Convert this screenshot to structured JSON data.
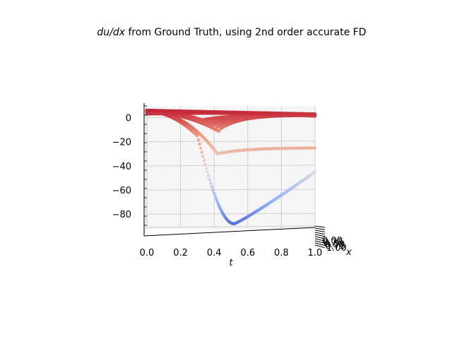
{
  "chart_data": {
    "type": "scatter",
    "projection": "3d",
    "title": "du/dx from Ground Truth, using 2nd order accurate FD",
    "title_italic_part": "du/dx",
    "title_rest": " from Ground Truth, using 2nd order accurate FD",
    "xlabel": "t",
    "ylabel": "x",
    "zlabel": "",
    "x_ticks": [
      "0.0",
      "0.2",
      "0.4",
      "0.6",
      "0.8",
      "1.0"
    ],
    "z_ticks": [
      "0",
      "−20",
      "−40",
      "−60",
      "−80"
    ],
    "y_ticks_overlapping": [
      "0.00",
      "0.25",
      "0.50",
      "0.75",
      "1.00"
    ],
    "xlim": [
      0,
      1
    ],
    "zlim": [
      -98,
      12
    ],
    "colormap": "coolwarm",
    "colormap_stops": [
      "#3b4cc0",
      "#8db0fe",
      "#dddddd",
      "#f49a7b",
      "#b40426"
    ],
    "grid": true,
    "pane_color": "#f5f5f5",
    "series_minimum": {
      "x": 0.52,
      "z": -88
    },
    "series_mid": {
      "start": 5,
      "dip_x": 0.42,
      "dip_z": -30,
      "end_z": -25
    },
    "series_upper": {
      "start": 5,
      "dip_x": 0.4,
      "dip_z": -4,
      "end_z": 0
    }
  }
}
